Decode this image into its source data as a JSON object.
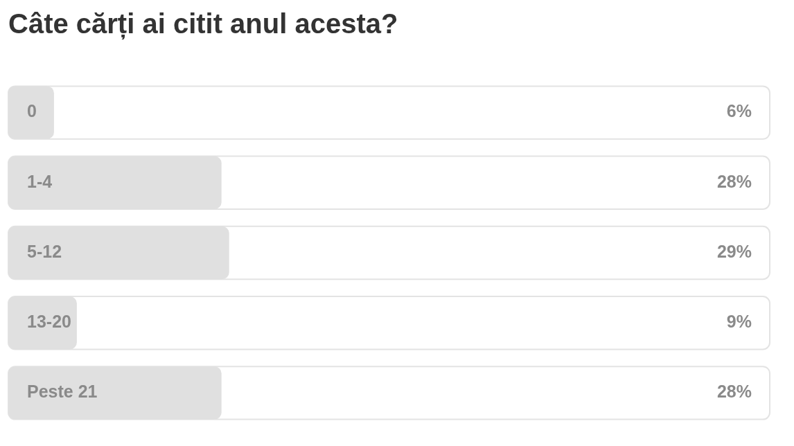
{
  "chart_data": {
    "type": "bar",
    "orientation": "horizontal",
    "title": "Câte cărți ai citit anul acesta?",
    "categories": [
      "0",
      "1-4",
      "5-12",
      "13-20",
      "Peste 21"
    ],
    "values": [
      6,
      28,
      29,
      9,
      28
    ],
    "value_labels": [
      "6%",
      "28%",
      "29%",
      "9%",
      "28%"
    ],
    "color": "#e0e0e0",
    "xlim": [
      0,
      100
    ],
    "legend": false
  }
}
